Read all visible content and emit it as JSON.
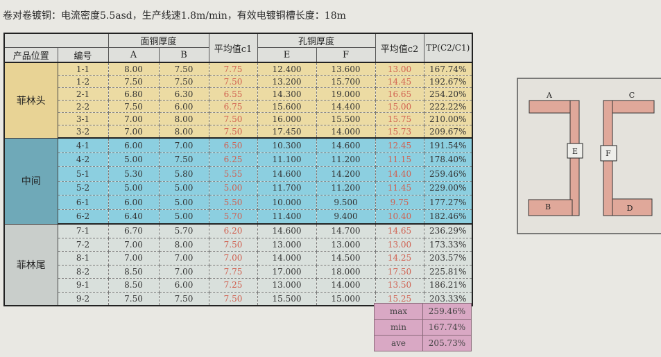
{
  "title": "卷对卷镀铜：电流密度5.5asd，生产线速1.8m/min，有效电镀铜槽长度：18m",
  "header": {
    "surface_group": "面铜厚度",
    "hole_group": "孔铜厚度",
    "position": "产品位置",
    "number": "编号",
    "a": "A",
    "b": "B",
    "avg_c1": "平均值c1",
    "e": "E",
    "f": "F",
    "avg_c2": "平均值c2",
    "tp": "TP(C2/C1)"
  },
  "groups": [
    {
      "location": "菲林头",
      "rows": [
        {
          "id": "1-1",
          "a": "8.00",
          "b": "7.50",
          "c1": "7.75",
          "e": "12.400",
          "f": "13.600",
          "c2": "13.00",
          "tp": "167.74%"
        },
        {
          "id": "1-2",
          "a": "7.50",
          "b": "7.50",
          "c1": "7.50",
          "e": "13.200",
          "f": "15.700",
          "c2": "14.45",
          "tp": "192.67%"
        },
        {
          "id": "2-1",
          "a": "6.80",
          "b": "6.30",
          "c1": "6.55",
          "e": "14.300",
          "f": "19.000",
          "c2": "16.65",
          "tp": "254.20%"
        },
        {
          "id": "2-2",
          "a": "7.50",
          "b": "6.00",
          "c1": "6.75",
          "e": "15.600",
          "f": "14.400",
          "c2": "15.00",
          "tp": "222.22%"
        },
        {
          "id": "3-1",
          "a": "7.00",
          "b": "8.00",
          "c1": "7.50",
          "e": "16.000",
          "f": "15.500",
          "c2": "15.75",
          "tp": "210.00%"
        },
        {
          "id": "3-2",
          "a": "7.00",
          "b": "8.00",
          "c1": "7.50",
          "e": "17.450",
          "f": "14.000",
          "c2": "15.73",
          "tp": "209.67%"
        }
      ]
    },
    {
      "location": "中间",
      "rows": [
        {
          "id": "4-1",
          "a": "6.00",
          "b": "7.00",
          "c1": "6.50",
          "e": "10.300",
          "f": "14.600",
          "c2": "12.45",
          "tp": "191.54%"
        },
        {
          "id": "4-2",
          "a": "5.00",
          "b": "7.50",
          "c1": "6.25",
          "e": "11.100",
          "f": "11.200",
          "c2": "11.15",
          "tp": "178.40%"
        },
        {
          "id": "5-1",
          "a": "5.30",
          "b": "5.80",
          "c1": "5.55",
          "e": "14.600",
          "f": "14.200",
          "c2": "14.40",
          "tp": "259.46%"
        },
        {
          "id": "5-2",
          "a": "5.00",
          "b": "5.00",
          "c1": "5.00",
          "e": "11.700",
          "f": "11.200",
          "c2": "11.45",
          "tp": "229.00%"
        },
        {
          "id": "6-1",
          "a": "6.00",
          "b": "5.00",
          "c1": "5.50",
          "e": "10.000",
          "f": "9.500",
          "c2": "9.75",
          "tp": "177.27%"
        },
        {
          "id": "6-2",
          "a": "6.40",
          "b": "5.00",
          "c1": "5.70",
          "e": "11.400",
          "f": "9.400",
          "c2": "10.40",
          "tp": "182.46%"
        }
      ]
    },
    {
      "location": "菲林尾",
      "rows": [
        {
          "id": "7-1",
          "a": "6.70",
          "b": "5.70",
          "c1": "6.20",
          "e": "14.600",
          "f": "14.700",
          "c2": "14.65",
          "tp": "236.29%"
        },
        {
          "id": "7-2",
          "a": "7.00",
          "b": "8.00",
          "c1": "7.50",
          "e": "13.000",
          "f": "13.000",
          "c2": "13.00",
          "tp": "173.33%"
        },
        {
          "id": "8-1",
          "a": "7.00",
          "b": "7.00",
          "c1": "7.00",
          "e": "14.000",
          "f": "14.500",
          "c2": "14.25",
          "tp": "203.57%"
        },
        {
          "id": "8-2",
          "a": "8.50",
          "b": "7.00",
          "c1": "7.75",
          "e": "17.000",
          "f": "18.000",
          "c2": "17.50",
          "tp": "225.81%"
        },
        {
          "id": "9-1",
          "a": "8.50",
          "b": "6.00",
          "c1": "7.25",
          "e": "13.000",
          "f": "14.000",
          "c2": "13.50",
          "tp": "186.21%"
        },
        {
          "id": "9-2",
          "a": "7.50",
          "b": "7.50",
          "c1": "7.50",
          "e": "15.500",
          "f": "15.000",
          "c2": "15.25",
          "tp": "203.33%"
        }
      ]
    }
  ],
  "summary": [
    {
      "label": "max",
      "value": "259.46%"
    },
    {
      "label": "min",
      "value": "167.74%"
    },
    {
      "label": "ave",
      "value": "205.73%"
    }
  ],
  "diagram": {
    "labels": {
      "a": "A",
      "b": "B",
      "c": "C",
      "d": "D",
      "e": "E",
      "f": "F"
    },
    "copper_color": "#e0a89a"
  },
  "colors": {
    "head_group": "#ecdba3",
    "middle_group": "#8ccfe0",
    "tail_group": "#d9e0dc",
    "summary": "#d9a8c4",
    "avg_text": "#d04545"
  }
}
